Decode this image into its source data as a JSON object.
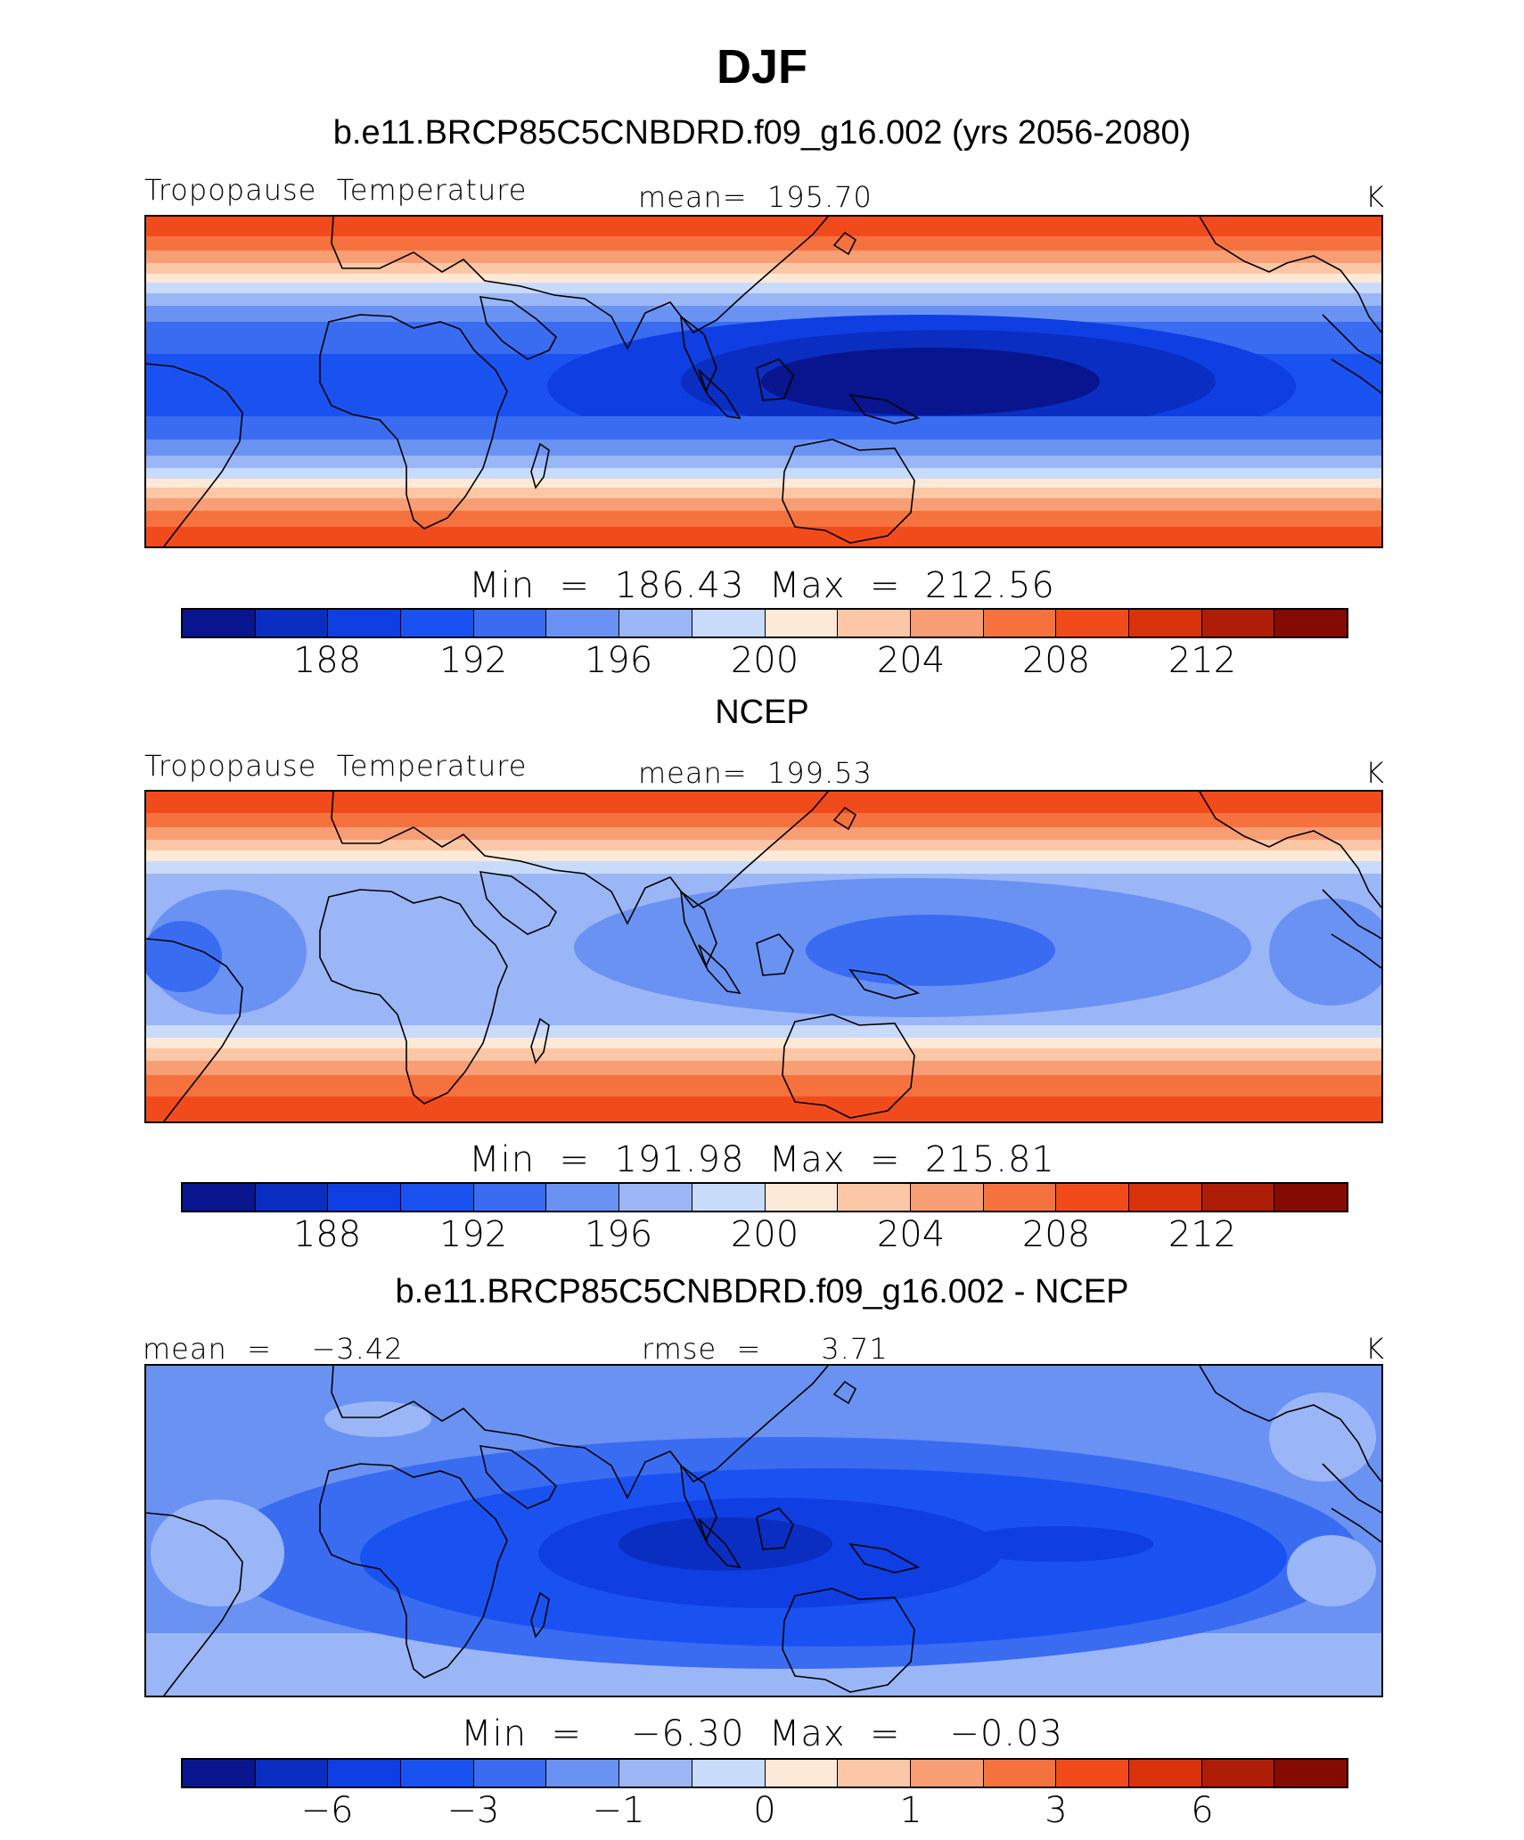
{
  "title": "DJF",
  "colors": {
    "palette": [
      "#08158f",
      "#0a2ec2",
      "#0f3ee3",
      "#1a52f2",
      "#3a6cf2",
      "#6a92f3",
      "#9bb6f6",
      "#c9dbfb",
      "#fde9d7",
      "#fbc7a6",
      "#f89e74",
      "#f5723f",
      "#f14b1c",
      "#d9330d",
      "#ae1d07",
      "#850a02"
    ],
    "coast": "#000000"
  },
  "panels": [
    {
      "id": "model",
      "case_title": "b.e11.BRCP85C5CNBDRD.f09_g16.002 (yrs 2056-2080)",
      "left_label": "Tropopause  Temperature",
      "center_label": "mean=  195.70",
      "units": "K",
      "minmax": "Min  =  186.43  Max  =  212.56",
      "colorbar_labels": [
        "188",
        "192",
        "196",
        "200",
        "204",
        "208",
        "212"
      ],
      "field_variable": "Tropopause Temperature",
      "field_mean": 195.7,
      "field_min": 186.43,
      "field_max": 212.56
    },
    {
      "id": "obs",
      "case_title": "NCEP",
      "left_label": "Tropopause  Temperature",
      "center_label": "mean=  199.53",
      "units": "K",
      "minmax": "Min  =  191.98  Max  =  215.81",
      "colorbar_labels": [
        "188",
        "192",
        "196",
        "200",
        "204",
        "208",
        "212"
      ],
      "field_variable": "Tropopause Temperature",
      "field_mean": 199.53,
      "field_min": 191.98,
      "field_max": 215.81
    },
    {
      "id": "diff",
      "case_title": "b.e11.BRCP85C5CNBDRD.f09_g16.002 - NCEP",
      "left_label": "mean  =    −3.42",
      "center_label": "rmse  =      3.71",
      "units": "K",
      "minmax": "Min  =    −6.30  Max  =    −0.03",
      "colorbar_labels": [
        "−6",
        "−3",
        "−1",
        "0",
        "1",
        "3",
        "6"
      ],
      "field_mean": -3.42,
      "field_rmse": 3.71,
      "field_min": -6.3,
      "field_max": -0.03
    }
  ]
}
